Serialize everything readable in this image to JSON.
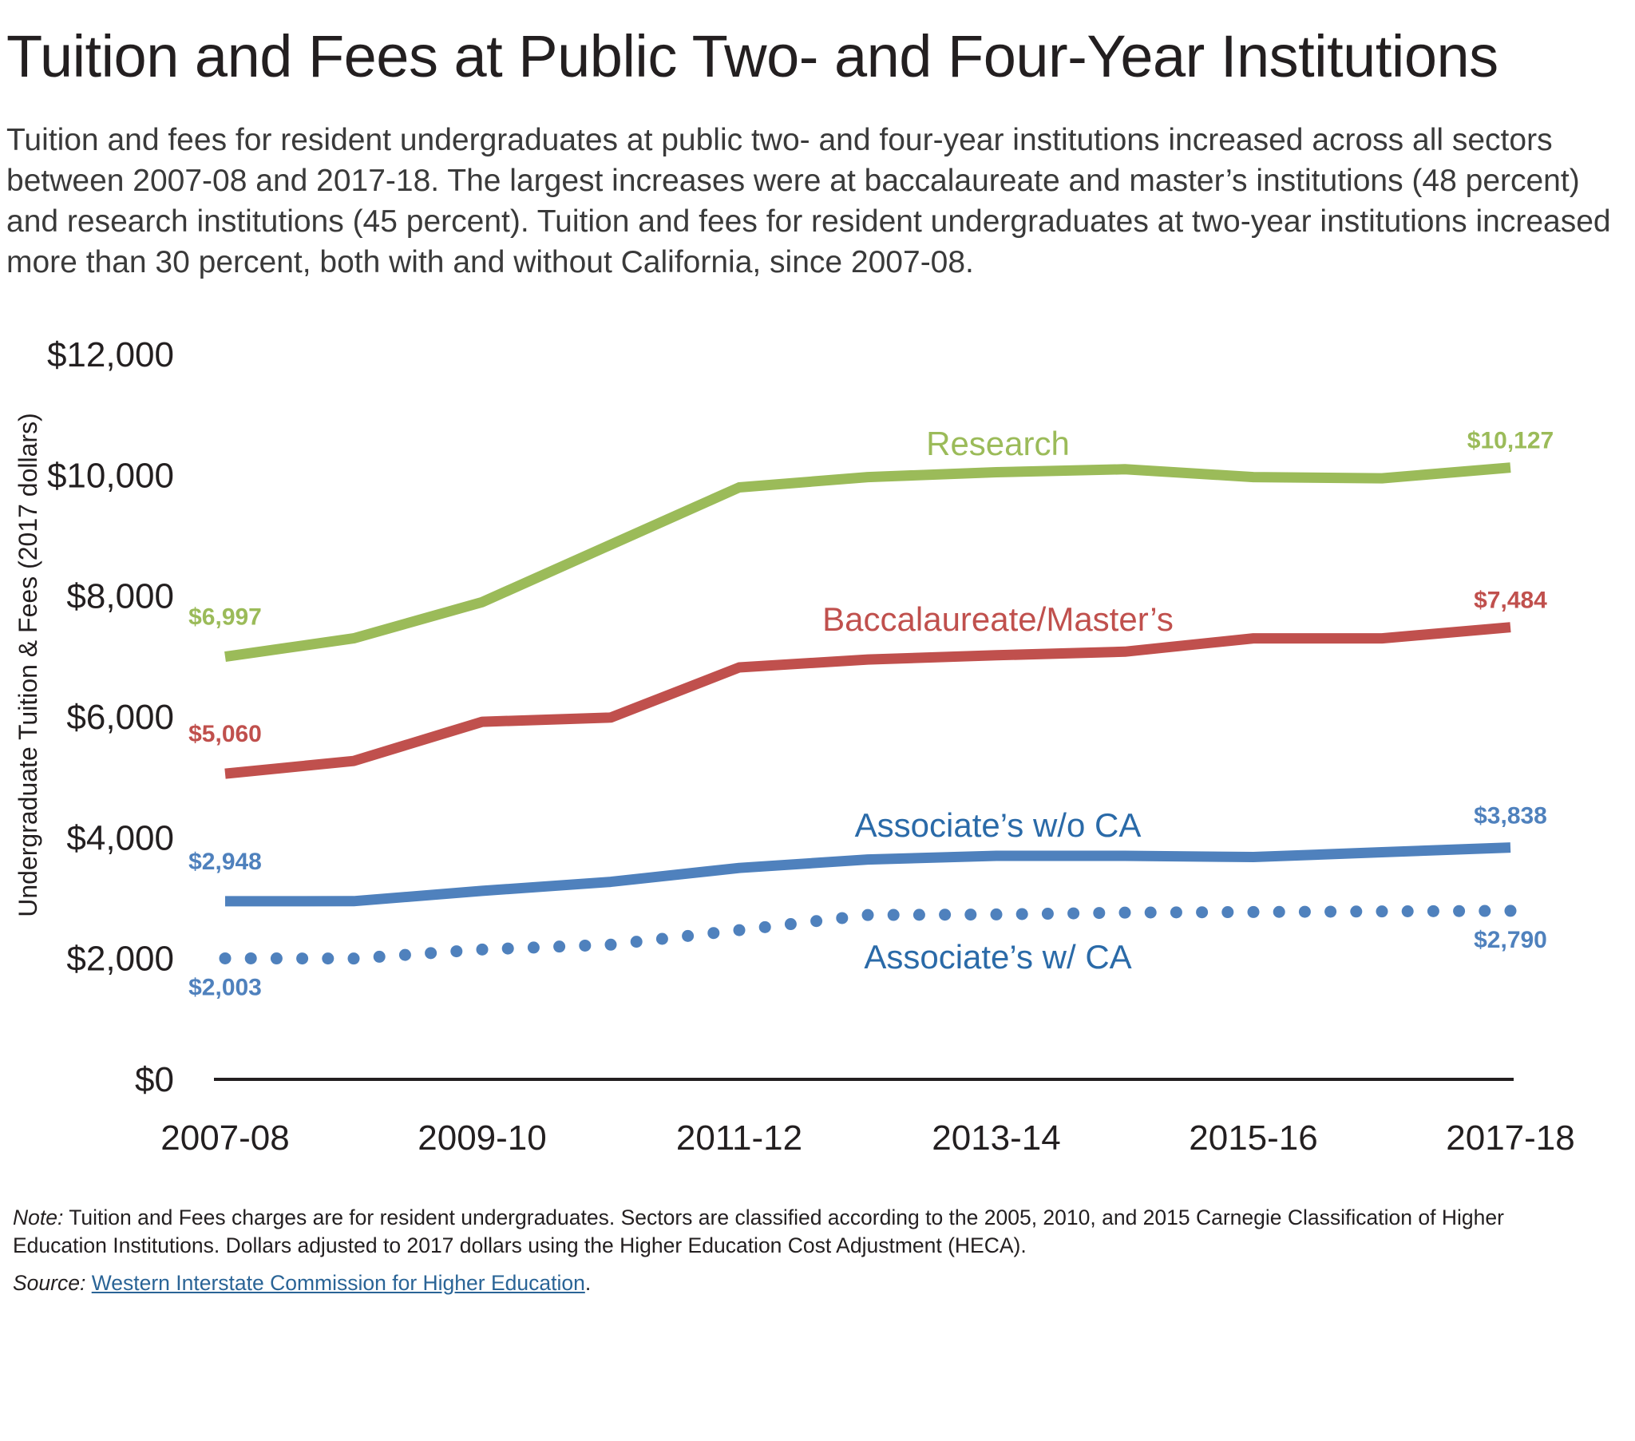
{
  "title": "Tuition and Fees at Public Two- and Four-Year Institutions",
  "subtitle": "Tuition and fees for resident undergraduates at public two- and four-year institutions increased across all sectors between 2007-08 and 2017-18. The largest increases were at baccalaureate and master’s institutions (48 percent) and research institutions (45 percent). Tuition and fees for resident undergraduates at two-year institutions increased more than 30 percent, both with and without California, since 2007-08.",
  "note": {
    "label": "Note:",
    "text": " Tuition and Fees charges are for resident undergraduates. Sectors are classified according to the 2005, 2010, and 2015 Carnegie Classification of Higher Education Institutions. Dollars adjusted to 2017 dollars using the Higher Education Cost Adjustment (HECA)."
  },
  "source": {
    "label": "Source:",
    "link_text": "Western Interstate Commission for Higher Education",
    "trailing": "."
  },
  "chart_data": {
    "type": "line",
    "title": "Tuition and Fees at Public Two- and Four-Year Institutions",
    "ylabel": "Undergraduate Tuition & Fees (2017 dollars)",
    "xlabel": "",
    "ylim": [
      0,
      12000
    ],
    "y_ticks": [
      0,
      2000,
      4000,
      6000,
      8000,
      10000,
      12000
    ],
    "y_tick_labels": [
      "$0",
      "$2,000",
      "$4,000",
      "$6,000",
      "$8,000",
      "$10,000",
      "$12,000"
    ],
    "x": [
      "2007-08",
      "2008-09",
      "2009-10",
      "2010-11",
      "2011-12",
      "2012-13",
      "2013-14",
      "2014-15",
      "2015-16",
      "2016-17",
      "2017-18"
    ],
    "x_tick_labels": [
      "2007-08",
      "2009-10",
      "2011-12",
      "2013-14",
      "2015-16",
      "2017-18"
    ],
    "grid": false,
    "legend": "inline labels",
    "series": [
      {
        "name": "Research",
        "color": "#9bbb59",
        "style": "solid",
        "values": [
          6997,
          7300,
          7900,
          8850,
          9800,
          9970,
          10050,
          10100,
          9970,
          9950,
          10127
        ],
        "start_label": "$6,997",
        "end_label": "$10,127"
      },
      {
        "name": "Baccalaureate/Master’s",
        "color": "#c0504d",
        "style": "solid",
        "values": [
          5060,
          5270,
          5920,
          5990,
          6820,
          6950,
          7020,
          7080,
          7300,
          7300,
          7484
        ],
        "start_label": "$5,060",
        "end_label": "$7,484"
      },
      {
        "name": "Associate’s w/o CA",
        "color": "#4f81bd",
        "style": "solid",
        "values": [
          2948,
          2950,
          3120,
          3270,
          3500,
          3640,
          3700,
          3700,
          3680,
          3760,
          3838
        ],
        "start_label": "$2,948",
        "end_label": "$3,838"
      },
      {
        "name": "Associate’s w/ CA",
        "color": "#4f81bd",
        "style": "dotted",
        "values": [
          2003,
          2000,
          2150,
          2230,
          2470,
          2720,
          2730,
          2760,
          2770,
          2780,
          2790
        ],
        "start_label": "$2,003",
        "end_label": "$2,790"
      }
    ]
  }
}
